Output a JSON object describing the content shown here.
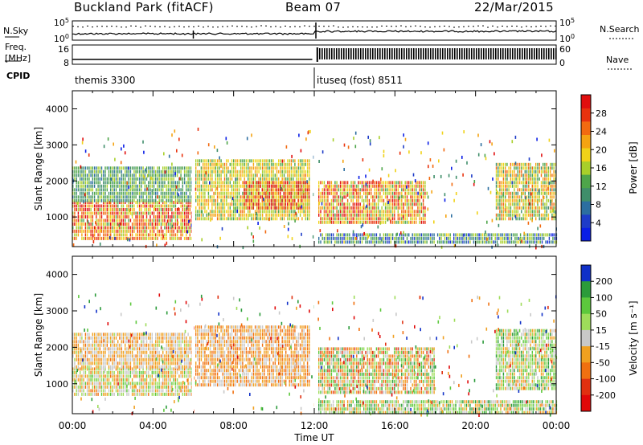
{
  "header": {
    "station": "Buckland Park (fitACF)",
    "beam": "Beam 07",
    "date": "22/Mar/2015"
  },
  "side_labels": {
    "nsky": "N.Sky",
    "nsearch": "N.Search",
    "freq_line1": "Freq.",
    "freq_line2": "[MHz]",
    "nave": "Nave",
    "cpid": "CPID"
  },
  "noise_axis": {
    "left_ticks": [
      "10^5",
      "10^0"
    ],
    "right_ticks": [
      "10^5",
      "10^0"
    ]
  },
  "freq_axis": {
    "left_ticks": [
      "16",
      "8"
    ],
    "right_ticks": [
      "60",
      "0"
    ]
  },
  "cpid_segments": [
    {
      "label": "themis 3300",
      "start_hour": 0,
      "end_hour": 12
    },
    {
      "label": "ituseq (fost) 8511",
      "start_hour": 12,
      "end_hour": 24
    }
  ],
  "chart_data": [
    {
      "type": "heatmap",
      "title": "",
      "xlabel": "Time UT",
      "ylabel": "Slant Range [km]",
      "xlim": [
        0,
        24
      ],
      "ylim": [
        180,
        4500
      ],
      "x_tick_labels": [
        "00:00",
        "04:00",
        "08:00",
        "12:00",
        "16:00",
        "20:00",
        "00:00"
      ],
      "y_ticks": [
        1000,
        2000,
        3000,
        4000
      ],
      "colorbar": {
        "label": "Power [dB]",
        "ticks": [
          4,
          8,
          12,
          16,
          20,
          24,
          28
        ],
        "colors": [
          "#0a1ee6",
          "#1e3cc8",
          "#2c6ea0",
          "#3f8e6a",
          "#4ea54a",
          "#a8cf2a",
          "#f0d218",
          "#f5a312",
          "#f26a10",
          "#e8320e",
          "#e10e0e"
        ]
      },
      "regions": [
        {
          "t0": 0.0,
          "t1": 5.9,
          "r0": 700,
          "r1": 1450,
          "value": 24,
          "noise": 0.8
        },
        {
          "t0": 0.0,
          "t1": 5.9,
          "r0": 1450,
          "r1": 2400,
          "value": 12,
          "noise": 0.3
        },
        {
          "t0": 0.0,
          "t1": 5.9,
          "r0": 350,
          "r1": 650,
          "value": 22,
          "noise": 0.5
        },
        {
          "t0": 6.1,
          "t1": 11.8,
          "r0": 900,
          "r1": 2600,
          "value": 18,
          "noise": 0.4
        },
        {
          "t0": 8.5,
          "t1": 11.8,
          "r0": 1200,
          "r1": 2000,
          "value": 26,
          "noise": 0.7
        },
        {
          "t0": 12.2,
          "t1": 17.5,
          "r0": 800,
          "r1": 2000,
          "value": 22,
          "noise": 0.65
        },
        {
          "t0": 12.2,
          "t1": 24.0,
          "r0": 250,
          "r1": 550,
          "value": 10,
          "noise": 0.55
        },
        {
          "t0": 21.0,
          "t1": 24.0,
          "r0": 900,
          "r1": 2500,
          "value": 18,
          "noise": 0.55
        }
      ]
    },
    {
      "type": "heatmap",
      "title": "",
      "xlabel": "Time UT",
      "ylabel": "Slant Range [km]",
      "xlim": [
        0,
        24
      ],
      "ylim": [
        180,
        4500
      ],
      "x_tick_labels": [
        "00:00",
        "04:00",
        "08:00",
        "12:00",
        "16:00",
        "20:00",
        "00:00"
      ],
      "y_ticks": [
        1000,
        2000,
        3000,
        4000
      ],
      "colorbar": {
        "label": "Velocity [m s⁻¹]",
        "ticks": [
          "200",
          "100",
          "50",
          "15",
          "-15",
          "-50",
          "-100",
          "-200"
        ],
        "colors": [
          "#1030c8",
          "#2b9b3a",
          "#5cc83c",
          "#9edc5a",
          "#c8c8c8",
          "#f0a020",
          "#f07010",
          "#e03010",
          "#e00808"
        ]
      },
      "regions": [
        {
          "t0": 0.0,
          "t1": 5.9,
          "r0": 700,
          "r1": 1450,
          "value": 5,
          "noise": 0.5
        },
        {
          "t0": 0.0,
          "t1": 5.9,
          "r0": 1450,
          "r1": 2400,
          "value": -30,
          "noise": 0.3
        },
        {
          "t0": 6.1,
          "t1": 11.8,
          "r0": 1000,
          "r1": 2600,
          "value": -60,
          "noise": 0.35
        },
        {
          "t0": 12.2,
          "t1": 18.0,
          "r0": 800,
          "r1": 2000,
          "value": 0,
          "noise": 0.8
        },
        {
          "t0": 12.2,
          "t1": 24.0,
          "r0": 250,
          "r1": 550,
          "value": 40,
          "noise": 0.6
        },
        {
          "t0": 21.0,
          "t1": 24.0,
          "r0": 900,
          "r1": 2500,
          "value": 45,
          "noise": 0.6
        }
      ]
    }
  ]
}
